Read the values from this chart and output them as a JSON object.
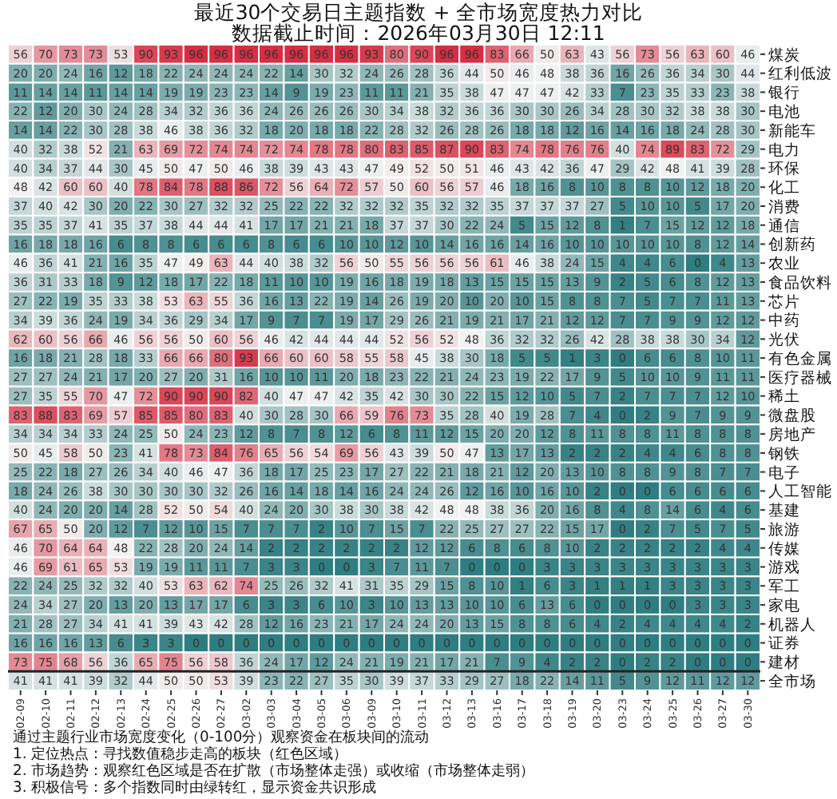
{
  "chart_data": {
    "type": "heatmap",
    "title": "最近30个交易日主题指数 + 全市场宽度热力对比",
    "subtitle": "数据截止时间：2026年03月30日 12:11",
    "categories": [
      "02-09",
      "02-10",
      "02-11",
      "02-12",
      "02-13",
      "02-24",
      "02-25",
      "02-26",
      "02-27",
      "03-02",
      "03-03",
      "03-04",
      "03-05",
      "03-06",
      "03-09",
      "03-10",
      "03-11",
      "03-12",
      "03-13",
      "03-16",
      "03-17",
      "03-18",
      "03-19",
      "03-20",
      "03-23",
      "03-24",
      "03-25",
      "03-26",
      "03-27",
      "03-30"
    ],
    "y_categories": [
      "煤炭",
      "红利低波",
      "银行",
      "电池",
      "新能车",
      "电力",
      "环保",
      "化工",
      "消费",
      "通信",
      "创新药",
      "农业",
      "食品饮料",
      "芯片",
      "中药",
      "光伏",
      "有色金属",
      "医疗器械",
      "稀土",
      "微盘股",
      "房地产",
      "钢铁",
      "电子",
      "人工智能",
      "基建",
      "旅游",
      "传媒",
      "游戏",
      "军工",
      "家电",
      "机器人",
      "证券",
      "建材",
      "全市场"
    ],
    "cells": [
      [
        56,
        70,
        73,
        73,
        53,
        90,
        93,
        96,
        96,
        96,
        96,
        96,
        96,
        96,
        93,
        80,
        90,
        96,
        96,
        83,
        66,
        50,
        63,
        43,
        56,
        73,
        56,
        63,
        60,
        46
      ],
      [
        20,
        20,
        24,
        16,
        12,
        18,
        22,
        24,
        24,
        24,
        22,
        14,
        30,
        32,
        24,
        26,
        28,
        36,
        44,
        50,
        46,
        48,
        38,
        36,
        16,
        26,
        36,
        34,
        30,
        44
      ],
      [
        11,
        14,
        14,
        11,
        14,
        14,
        19,
        19,
        23,
        23,
        14,
        9,
        19,
        23,
        11,
        11,
        21,
        35,
        38,
        47,
        47,
        47,
        42,
        33,
        7,
        23,
        35,
        33,
        23,
        38
      ],
      [
        22,
        12,
        20,
        30,
        24,
        28,
        34,
        32,
        36,
        36,
        24,
        26,
        26,
        26,
        30,
        34,
        38,
        32,
        36,
        36,
        30,
        30,
        26,
        34,
        28,
        30,
        32,
        38,
        38,
        30
      ],
      [
        14,
        14,
        22,
        30,
        28,
        38,
        46,
        38,
        36,
        32,
        18,
        20,
        18,
        18,
        22,
        28,
        32,
        26,
        28,
        26,
        18,
        18,
        12,
        16,
        14,
        16,
        18,
        24,
        28,
        30
      ],
      [
        40,
        32,
        38,
        52,
        21,
        63,
        69,
        72,
        74,
        74,
        72,
        74,
        78,
        78,
        80,
        83,
        85,
        87,
        90,
        83,
        74,
        78,
        76,
        76,
        40,
        74,
        89,
        83,
        72,
        29
      ],
      [
        40,
        34,
        37,
        44,
        30,
        45,
        50,
        47,
        50,
        46,
        38,
        39,
        43,
        43,
        47,
        49,
        52,
        50,
        51,
        46,
        43,
        42,
        36,
        47,
        29,
        42,
        48,
        41,
        39,
        28
      ],
      [
        48,
        42,
        60,
        60,
        40,
        78,
        84,
        78,
        88,
        86,
        72,
        56,
        64,
        72,
        57,
        50,
        60,
        56,
        57,
        46,
        18,
        16,
        8,
        10,
        8,
        8,
        10,
        12,
        18,
        20
      ],
      [
        37,
        40,
        42,
        30,
        20,
        22,
        30,
        27,
        32,
        32,
        25,
        22,
        22,
        32,
        32,
        32,
        35,
        32,
        32,
        35,
        37,
        37,
        37,
        27,
        5,
        10,
        10,
        5,
        17,
        20
      ],
      [
        35,
        35,
        37,
        41,
        35,
        37,
        38,
        44,
        44,
        41,
        17,
        17,
        21,
        21,
        18,
        37,
        37,
        30,
        22,
        24,
        5,
        15,
        12,
        8,
        1,
        7,
        15,
        12,
        12,
        18
      ],
      [
        16,
        18,
        18,
        16,
        6,
        8,
        8,
        6,
        6,
        6,
        8,
        6,
        6,
        10,
        10,
        12,
        10,
        14,
        16,
        16,
        14,
        16,
        10,
        10,
        10,
        10,
        10,
        8,
        12,
        14
      ],
      [
        46,
        36,
        41,
        21,
        16,
        35,
        47,
        49,
        63,
        44,
        40,
        38,
        32,
        56,
        50,
        55,
        56,
        56,
        56,
        61,
        46,
        38,
        24,
        15,
        4,
        4,
        6,
        0,
        4,
        13
      ],
      [
        36,
        31,
        33,
        18,
        9,
        12,
        18,
        17,
        22,
        18,
        11,
        10,
        10,
        19,
        16,
        18,
        19,
        18,
        13,
        15,
        15,
        15,
        13,
        9,
        2,
        5,
        6,
        8,
        12,
        13
      ],
      [
        27,
        22,
        19,
        35,
        33,
        38,
        53,
        63,
        55,
        36,
        16,
        13,
        22,
        19,
        14,
        26,
        19,
        20,
        10,
        20,
        10,
        15,
        8,
        8,
        7,
        5,
        7,
        7,
        11,
        13
      ],
      [
        34,
        39,
        36,
        24,
        19,
        34,
        36,
        29,
        34,
        17,
        9,
        7,
        7,
        19,
        17,
        29,
        26,
        21,
        19,
        21,
        17,
        21,
        12,
        12,
        7,
        7,
        9,
        9,
        12,
        12
      ],
      [
        62,
        60,
        56,
        66,
        46,
        56,
        56,
        50,
        60,
        56,
        46,
        42,
        44,
        44,
        44,
        52,
        56,
        52,
        48,
        36,
        32,
        32,
        26,
        42,
        28,
        38,
        38,
        30,
        34,
        12
      ],
      [
        16,
        18,
        21,
        28,
        18,
        33,
        66,
        66,
        80,
        93,
        66,
        60,
        60,
        58,
        55,
        58,
        45,
        38,
        30,
        18,
        5,
        5,
        1,
        3,
        0,
        6,
        6,
        8,
        10,
        11
      ],
      [
        27,
        27,
        24,
        21,
        17,
        20,
        27,
        20,
        31,
        16,
        10,
        10,
        11,
        20,
        18,
        23,
        22,
        21,
        24,
        23,
        19,
        22,
        17,
        9,
        5,
        10,
        10,
        9,
        11,
        11
      ],
      [
        27,
        35,
        55,
        70,
        47,
        72,
        90,
        90,
        90,
        82,
        40,
        47,
        47,
        42,
        35,
        42,
        30,
        30,
        22,
        15,
        12,
        10,
        5,
        7,
        2,
        7,
        7,
        7,
        12,
        10
      ],
      [
        83,
        88,
        83,
        69,
        57,
        85,
        85,
        80,
        83,
        40,
        30,
        28,
        30,
        66,
        59,
        76,
        73,
        35,
        28,
        40,
        19,
        28,
        7,
        4,
        0,
        2,
        9,
        7,
        9,
        9
      ],
      [
        34,
        34,
        34,
        33,
        24,
        25,
        50,
        24,
        23,
        12,
        8,
        7,
        8,
        12,
        6,
        8,
        11,
        12,
        15,
        20,
        20,
        12,
        8,
        11,
        8,
        8,
        11,
        8,
        8,
        8
      ],
      [
        50,
        45,
        58,
        50,
        23,
        41,
        78,
        73,
        84,
        76,
        65,
        56,
        54,
        69,
        56,
        43,
        39,
        50,
        47,
        13,
        17,
        13,
        2,
        2,
        2,
        4,
        4,
        6,
        8,
        8
      ],
      [
        25,
        22,
        18,
        27,
        26,
        34,
        40,
        46,
        47,
        36,
        18,
        17,
        25,
        23,
        17,
        27,
        22,
        21,
        18,
        21,
        12,
        20,
        13,
        10,
        8,
        8,
        9,
        8,
        7,
        7
      ],
      [
        18,
        24,
        26,
        38,
        30,
        30,
        30,
        30,
        32,
        26,
        16,
        14,
        18,
        14,
        16,
        24,
        24,
        26,
        12,
        16,
        10,
        16,
        10,
        2,
        0,
        0,
        6,
        6,
        6,
        6
      ],
      [
        40,
        24,
        20,
        20,
        14,
        28,
        52,
        50,
        54,
        40,
        24,
        20,
        30,
        38,
        30,
        38,
        42,
        48,
        48,
        38,
        36,
        20,
        16,
        8,
        4,
        8,
        14,
        6,
        4,
        6
      ],
      [
        67,
        65,
        50,
        20,
        12,
        7,
        12,
        10,
        15,
        7,
        7,
        7,
        2,
        10,
        7,
        15,
        7,
        22,
        25,
        27,
        27,
        22,
        15,
        17,
        0,
        2,
        7,
        5,
        7,
        5
      ],
      [
        46,
        70,
        64,
        64,
        48,
        22,
        28,
        20,
        24,
        14,
        2,
        2,
        2,
        2,
        2,
        2,
        12,
        12,
        6,
        8,
        6,
        8,
        10,
        2,
        2,
        2,
        2,
        2,
        4,
        4
      ],
      [
        46,
        69,
        61,
        65,
        53,
        19,
        19,
        11,
        11,
        7,
        3,
        3,
        0,
        0,
        3,
        7,
        11,
        7,
        0,
        0,
        0,
        3,
        3,
        3,
        3,
        3,
        3,
        3,
        3,
        3
      ],
      [
        22,
        24,
        25,
        32,
        32,
        40,
        53,
        63,
        62,
        74,
        25,
        26,
        32,
        41,
        31,
        35,
        29,
        15,
        8,
        10,
        1,
        6,
        3,
        1,
        1,
        1,
        3,
        3,
        3,
        3
      ],
      [
        24,
        34,
        27,
        20,
        13,
        20,
        13,
        17,
        17,
        6,
        3,
        3,
        6,
        10,
        3,
        10,
        13,
        13,
        10,
        10,
        6,
        13,
        6,
        0,
        0,
        0,
        0,
        3,
        3,
        3
      ],
      [
        21,
        28,
        27,
        34,
        41,
        41,
        39,
        43,
        42,
        28,
        12,
        16,
        23,
        21,
        17,
        24,
        24,
        20,
        13,
        15,
        8,
        8,
        6,
        4,
        2,
        4,
        4,
        4,
        4,
        2
      ],
      [
        16,
        16,
        16,
        13,
        6,
        3,
        3,
        0,
        0,
        0,
        0,
        0,
        0,
        0,
        0,
        0,
        0,
        0,
        0,
        0,
        0,
        0,
        0,
        0,
        0,
        0,
        0,
        0,
        0,
        0
      ],
      [
        73,
        75,
        68,
        56,
        36,
        65,
        75,
        56,
        58,
        36,
        24,
        17,
        12,
        24,
        21,
        19,
        21,
        17,
        21,
        7,
        9,
        4,
        2,
        2,
        0,
        2,
        2,
        0,
        0,
        0
      ],
      [
        41,
        41,
        41,
        39,
        32,
        44,
        50,
        50,
        53,
        39,
        23,
        22,
        27,
        35,
        30,
        39,
        37,
        33,
        29,
        27,
        18,
        22,
        14,
        11,
        5,
        9,
        12,
        11,
        12,
        12
      ]
    ],
    "data_labels": true,
    "annotations": [
      "通过主题行业市场宽度变化（0-100分）观察资金在板块间的流动",
      "1. 定位热点：寻找数值稳步走高的板块（红色区域）",
      "2. 市场趋势：观察红色区域是否在扩散（市场整体走强）或收缩（市场整体走弱）",
      "3. 积极信号：多个指数同时由绿转红，显示资金共识形成"
    ]
  }
}
